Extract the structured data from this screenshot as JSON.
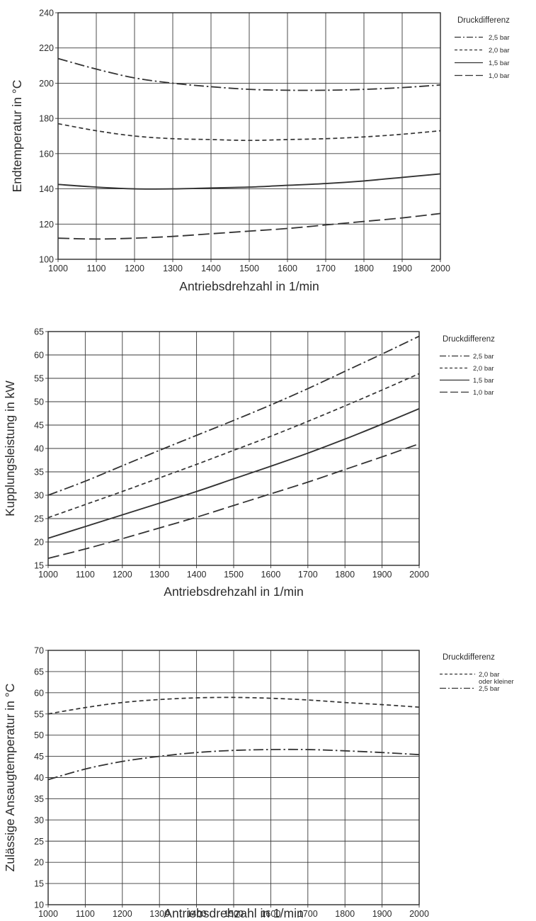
{
  "chart_data": [
    {
      "type": "line",
      "xlabel": "Antriebsdrehzahl in 1/min",
      "ylabel": "Endtemperatur in °C",
      "xlim": [
        1000,
        2000
      ],
      "ylim": [
        100,
        240
      ],
      "xticks": [
        1000,
        1100,
        1200,
        1300,
        1400,
        1500,
        1600,
        1700,
        1800,
        1900,
        2000
      ],
      "yticks": [
        100,
        120,
        140,
        160,
        180,
        200,
        220,
        240
      ],
      "grid": true,
      "legend_title": "Druckdifferenz",
      "legend_position": "right",
      "series": [
        {
          "name": "2,5 bar",
          "style": "dashdot",
          "x": [
            1000,
            1100,
            1200,
            1300,
            1400,
            1500,
            1600,
            1700,
            1800,
            1900,
            2000
          ],
          "y": [
            214,
            208,
            203,
            200,
            198,
            196.5,
            196,
            196,
            196.5,
            197.5,
            199
          ]
        },
        {
          "name": "2,0 bar",
          "style": "dashed",
          "x": [
            1000,
            1100,
            1200,
            1300,
            1400,
            1500,
            1600,
            1700,
            1800,
            1900,
            2000
          ],
          "y": [
            177,
            173,
            170,
            168.5,
            168,
            167.5,
            168,
            168.5,
            169.5,
            171,
            173
          ]
        },
        {
          "name": "1,5 bar",
          "style": "solid",
          "x": [
            1000,
            1100,
            1200,
            1300,
            1400,
            1500,
            1600,
            1700,
            1800,
            1900,
            2000
          ],
          "y": [
            142.5,
            141,
            140,
            140,
            140.5,
            141,
            142,
            143,
            144.5,
            146.5,
            148.5
          ]
        },
        {
          "name": "1,0 bar",
          "style": "longdash",
          "x": [
            1000,
            1100,
            1200,
            1300,
            1400,
            1500,
            1600,
            1700,
            1800,
            1900,
            2000
          ],
          "y": [
            112,
            111.5,
            112,
            113,
            114.5,
            116,
            117.5,
            119.5,
            121.5,
            123.5,
            126
          ]
        }
      ]
    },
    {
      "type": "line",
      "xlabel": "Antriebsdrehzahl in 1/min",
      "ylabel": "Kupplungsleistung in kW",
      "xlim": [
        1000,
        2000
      ],
      "ylim": [
        15,
        65
      ],
      "xticks": [
        1000,
        1100,
        1200,
        1300,
        1400,
        1500,
        1600,
        1700,
        1800,
        1900,
        2000
      ],
      "yticks": [
        15,
        20,
        25,
        30,
        35,
        40,
        45,
        50,
        55,
        60,
        65
      ],
      "grid": true,
      "legend_title": "Druckdifferenz",
      "legend_position": "right",
      "series": [
        {
          "name": "2,5 bar",
          "style": "dashdot",
          "x": [
            1000,
            1100,
            1200,
            1300,
            1400,
            1500,
            1600,
            1700,
            1800,
            1900,
            2000
          ],
          "y": [
            30,
            33,
            36.3,
            39.6,
            42.8,
            46,
            49.3,
            52.8,
            56.5,
            60.2,
            64
          ]
        },
        {
          "name": "2,0 bar",
          "style": "dashed",
          "x": [
            1000,
            1100,
            1200,
            1300,
            1400,
            1500,
            1600,
            1700,
            1800,
            1900,
            2000
          ],
          "y": [
            25.2,
            28,
            30.8,
            33.7,
            36.6,
            39.6,
            42.6,
            45.8,
            49.1,
            52.5,
            56
          ]
        },
        {
          "name": "1,5 bar",
          "style": "solid",
          "x": [
            1000,
            1100,
            1200,
            1300,
            1400,
            1500,
            1600,
            1700,
            1800,
            1900,
            2000
          ],
          "y": [
            20.8,
            23.3,
            25.8,
            28.3,
            30.8,
            33.5,
            36.2,
            39,
            42,
            45.2,
            48.5
          ]
        },
        {
          "name": "1,0 bar",
          "style": "longdash",
          "x": [
            1000,
            1100,
            1200,
            1300,
            1400,
            1500,
            1600,
            1700,
            1800,
            1900,
            2000
          ],
          "y": [
            16.5,
            18.5,
            20.7,
            23,
            25.3,
            27.8,
            30.3,
            32.8,
            35.5,
            38.2,
            41
          ]
        }
      ]
    },
    {
      "type": "line",
      "xlabel": "Antriebsdrehzahl in 1/min",
      "ylabel": "Zulässige Ansaugtemperatur in °C",
      "xlim": [
        1000,
        2000
      ],
      "ylim": [
        10,
        70
      ],
      "xticks": [
        1000,
        1100,
        1200,
        1300,
        1400,
        1500,
        1600,
        1700,
        1800,
        1900,
        2000
      ],
      "yticks": [
        10,
        15,
        20,
        25,
        30,
        35,
        40,
        45,
        50,
        55,
        60,
        65,
        70
      ],
      "grid": true,
      "legend_title": "Druckdifferenz",
      "legend_position": "right",
      "series": [
        {
          "name": "2,0 bar",
          "name_line2": "oder kleiner",
          "style": "dashed",
          "x": [
            1000,
            1100,
            1200,
            1300,
            1400,
            1500,
            1600,
            1700,
            1800,
            1900,
            2000
          ],
          "y": [
            55,
            56.5,
            57.7,
            58.4,
            58.8,
            58.9,
            58.7,
            58.3,
            57.7,
            57.2,
            56.6
          ]
        },
        {
          "name": "2,5 bar",
          "style": "dashdot",
          "x": [
            1000,
            1100,
            1200,
            1300,
            1400,
            1500,
            1600,
            1700,
            1800,
            1900,
            2000
          ],
          "y": [
            39.5,
            42,
            43.8,
            45,
            45.9,
            46.4,
            46.6,
            46.6,
            46.3,
            45.9,
            45.4
          ]
        }
      ]
    }
  ]
}
